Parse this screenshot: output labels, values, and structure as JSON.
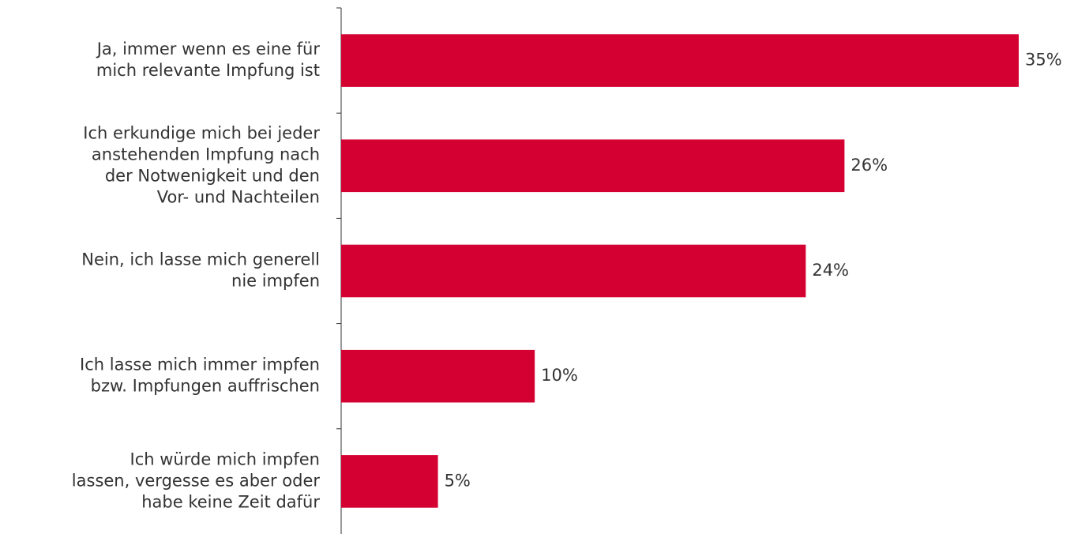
{
  "chart_data": {
    "type": "bar",
    "orientation": "horizontal",
    "categories": [
      [
        "Ja, immer wenn es eine für",
        "mich relevante Impfung ist"
      ],
      [
        "Ich erkundige mich bei jeder",
        "anstehenden Impfung nach",
        "der Notwenigkeit und den",
        "Vor- und Nachteilen"
      ],
      [
        "Nein, ich lasse mich generell",
        "nie impfen"
      ],
      [
        "Ich lasse mich immer impfen",
        "bzw. Impfungen auffrischen"
      ],
      [
        "Ich würde mich impfen",
        "lassen, vergesse es aber oder",
        "habe keine Zeit dafür"
      ]
    ],
    "values": [
      35,
      26,
      24,
      10,
      5
    ],
    "value_labels": [
      "35%",
      "26%",
      "24%",
      "10%",
      "5%"
    ],
    "color": "#d50032"
  }
}
